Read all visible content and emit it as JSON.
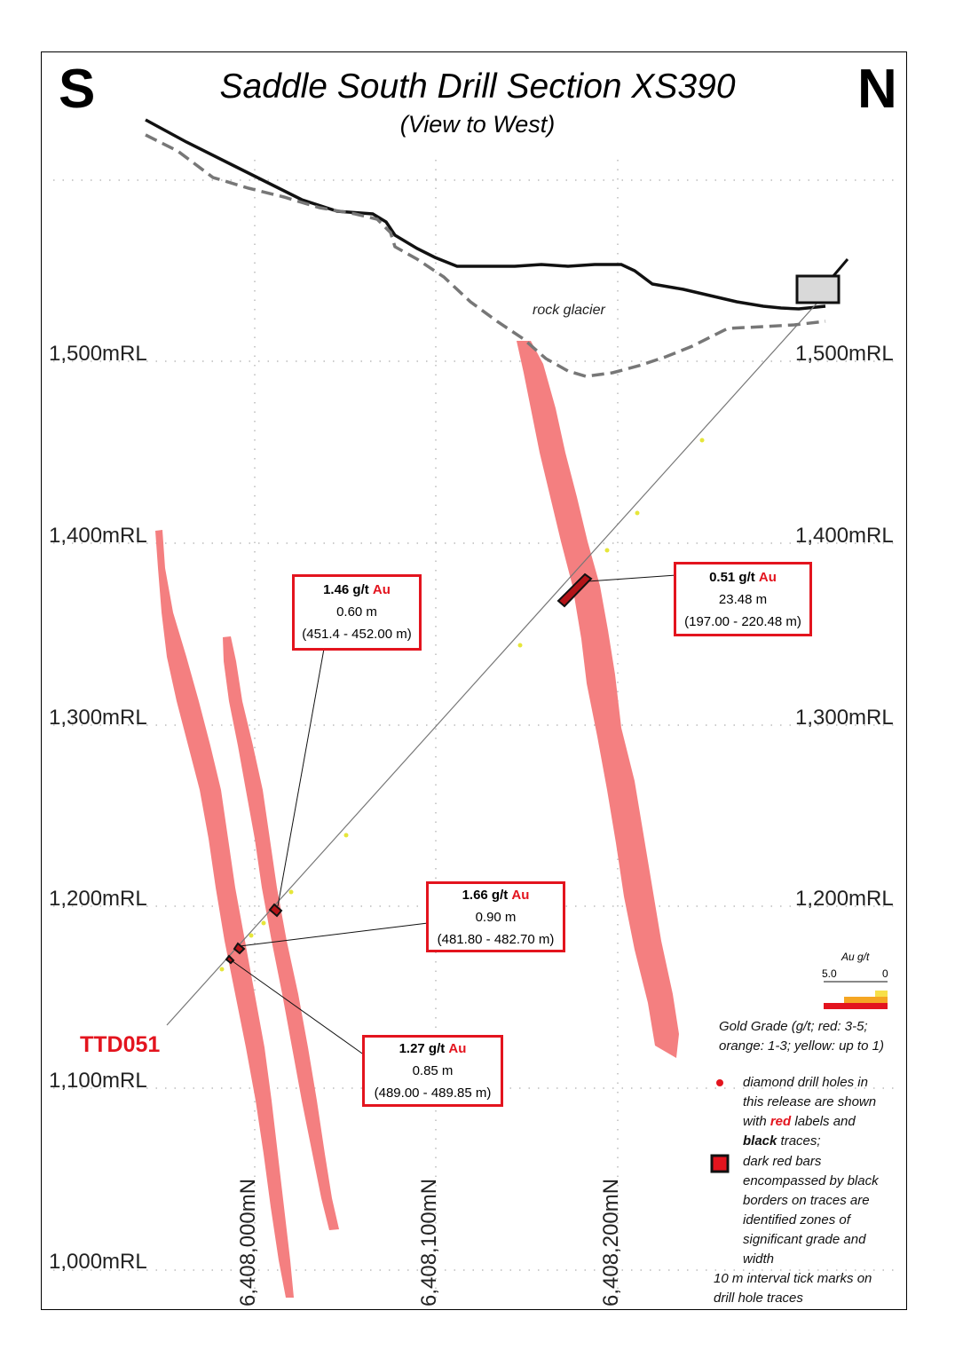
{
  "title": "Saddle South Drill Section XS390",
  "subtitle": "(View to West)",
  "direction_left": "S",
  "direction_right": "N",
  "elevation_labels": [
    "1,500mRL",
    "1,400mRL",
    "1,300mRL",
    "1,200mRL",
    "1,100mRL",
    "1,000mRL"
  ],
  "northing_labels": [
    "6,408,000mN",
    "6,408,100mN",
    "6,408,200mN"
  ],
  "annotation": "rock glacier",
  "drill_hole": "TTD051",
  "intercepts": [
    {
      "grade": "1.46 g/t",
      "element": "Au",
      "width": "0.60 m",
      "interval": "(451.4 - 452.00 m)"
    },
    {
      "grade": "0.51 g/t",
      "element": "Au",
      "width": "23.48 m",
      "interval": "(197.00 - 220.48 m)"
    },
    {
      "grade": "1.66 g/t",
      "element": "Au",
      "width": "0.90 m",
      "interval": "(481.80 - 482.70 m)"
    },
    {
      "grade": "1.27 g/t",
      "element": "Au",
      "width": "0.85 m",
      "interval": "(489.00 - 489.85 m)"
    }
  ],
  "legend": {
    "scale_title": "Au g/t",
    "scale_max": "5.0",
    "scale_min": "0",
    "grade_line1": "Gold Grade (g/t; red: 3-5;",
    "grade_line2": "orange: 1-3; yellow: up to 1)",
    "holes_line1": "diamond drill holes in",
    "holes_line2": "this release are shown",
    "holes_line3_a": "with ",
    "holes_line3_b": "red",
    "holes_line3_c": " labels and",
    "holes_line4_a": "black",
    "holes_line4_b": " traces;",
    "bars_line1": "dark red bars",
    "bars_line2": "encompassed by black",
    "bars_line3": "borders on traces are",
    "bars_line4": "identified zones of",
    "bars_line5": "significant grade and",
    "bars_line6": "width",
    "ticks_line1": "10 m interval tick marks on",
    "ticks_line2": "drill hole traces"
  },
  "colors": {
    "accent_red": "#e3141e",
    "lode_pink": "#f47f80",
    "frame": "#000000"
  }
}
